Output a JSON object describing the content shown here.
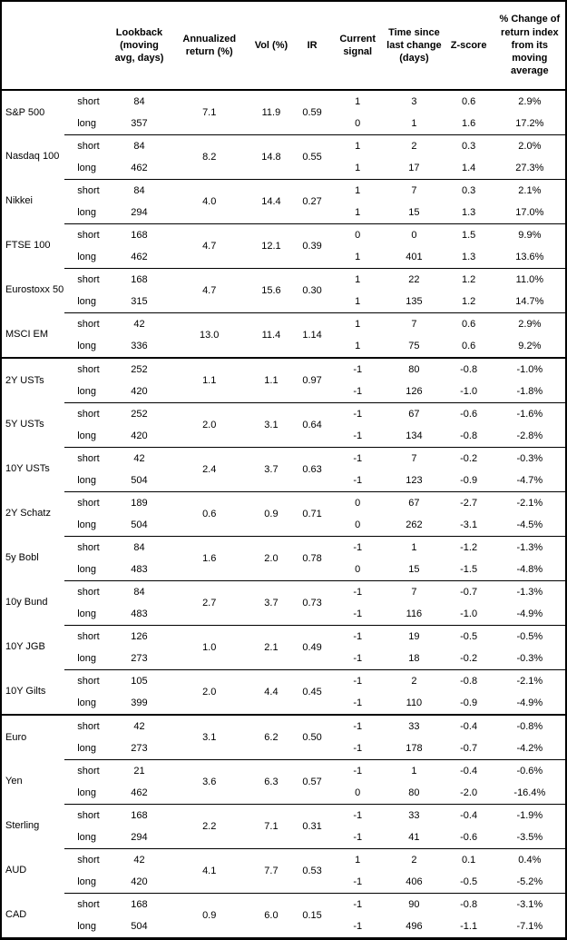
{
  "table": {
    "headers": [
      "",
      "",
      "Lookback (moving avg, days)",
      "Annualized return (%)",
      "Vol (%)",
      "IR",
      "Current signal",
      "Time since last change (days)",
      "Z-score",
      "% Change of return index from its moving average"
    ],
    "groups": [
      {
        "name": "S&P 500",
        "annualized_return": "7.1",
        "vol": "11.9",
        "ir": "0.59",
        "section_start": false,
        "rows": [
          {
            "side": "short",
            "lookback": "84",
            "signal": "1",
            "time_since": "3",
            "z_score": "0.6",
            "pct_change": "2.9%"
          },
          {
            "side": "long",
            "lookback": "357",
            "signal": "0",
            "time_since": "1",
            "z_score": "1.6",
            "pct_change": "17.2%"
          }
        ]
      },
      {
        "name": "Nasdaq 100",
        "annualized_return": "8.2",
        "vol": "14.8",
        "ir": "0.55",
        "section_start": false,
        "rows": [
          {
            "side": "short",
            "lookback": "84",
            "signal": "1",
            "time_since": "2",
            "z_score": "0.3",
            "pct_change": "2.0%"
          },
          {
            "side": "long",
            "lookback": "462",
            "signal": "1",
            "time_since": "17",
            "z_score": "1.4",
            "pct_change": "27.3%"
          }
        ]
      },
      {
        "name": "Nikkei",
        "annualized_return": "4.0",
        "vol": "14.4",
        "ir": "0.27",
        "section_start": false,
        "rows": [
          {
            "side": "short",
            "lookback": "84",
            "signal": "1",
            "time_since": "7",
            "z_score": "0.3",
            "pct_change": "2.1%"
          },
          {
            "side": "long",
            "lookback": "294",
            "signal": "1",
            "time_since": "15",
            "z_score": "1.3",
            "pct_change": "17.0%"
          }
        ]
      },
      {
        "name": "FTSE 100",
        "annualized_return": "4.7",
        "vol": "12.1",
        "ir": "0.39",
        "section_start": false,
        "rows": [
          {
            "side": "short",
            "lookback": "168",
            "signal": "0",
            "time_since": "0",
            "z_score": "1.5",
            "pct_change": "9.9%"
          },
          {
            "side": "long",
            "lookback": "462",
            "signal": "1",
            "time_since": "401",
            "z_score": "1.3",
            "pct_change": "13.6%"
          }
        ]
      },
      {
        "name": "Eurostoxx 50",
        "annualized_return": "4.7",
        "vol": "15.6",
        "ir": "0.30",
        "section_start": false,
        "rows": [
          {
            "side": "short",
            "lookback": "168",
            "signal": "1",
            "time_since": "22",
            "z_score": "1.2",
            "pct_change": "11.0%"
          },
          {
            "side": "long",
            "lookback": "315",
            "signal": "1",
            "time_since": "135",
            "z_score": "1.2",
            "pct_change": "14.7%"
          }
        ]
      },
      {
        "name": "MSCI EM",
        "annualized_return": "13.0",
        "vol": "11.4",
        "ir": "1.14",
        "section_start": false,
        "rows": [
          {
            "side": "short",
            "lookback": "42",
            "signal": "1",
            "time_since": "7",
            "z_score": "0.6",
            "pct_change": "2.9%"
          },
          {
            "side": "long",
            "lookback": "336",
            "signal": "1",
            "time_since": "75",
            "z_score": "0.6",
            "pct_change": "9.2%"
          }
        ]
      },
      {
        "name": "2Y USTs",
        "annualized_return": "1.1",
        "vol": "1.1",
        "ir": "0.97",
        "section_start": true,
        "rows": [
          {
            "side": "short",
            "lookback": "252",
            "signal": "-1",
            "time_since": "80",
            "z_score": "-0.8",
            "pct_change": "-1.0%"
          },
          {
            "side": "long",
            "lookback": "420",
            "signal": "-1",
            "time_since": "126",
            "z_score": "-1.0",
            "pct_change": "-1.8%"
          }
        ]
      },
      {
        "name": "5Y USTs",
        "annualized_return": "2.0",
        "vol": "3.1",
        "ir": "0.64",
        "section_start": false,
        "rows": [
          {
            "side": "short",
            "lookback": "252",
            "signal": "-1",
            "time_since": "67",
            "z_score": "-0.6",
            "pct_change": "-1.6%"
          },
          {
            "side": "long",
            "lookback": "420",
            "signal": "-1",
            "time_since": "134",
            "z_score": "-0.8",
            "pct_change": "-2.8%"
          }
        ]
      },
      {
        "name": "10Y USTs",
        "annualized_return": "2.4",
        "vol": "3.7",
        "ir": "0.63",
        "section_start": false,
        "rows": [
          {
            "side": "short",
            "lookback": "42",
            "signal": "-1",
            "time_since": "7",
            "z_score": "-0.2",
            "pct_change": "-0.3%"
          },
          {
            "side": "long",
            "lookback": "504",
            "signal": "-1",
            "time_since": "123",
            "z_score": "-0.9",
            "pct_change": "-4.7%"
          }
        ]
      },
      {
        "name": "2Y Schatz",
        "annualized_return": "0.6",
        "vol": "0.9",
        "ir": "0.71",
        "section_start": false,
        "rows": [
          {
            "side": "short",
            "lookback": "189",
            "signal": "0",
            "time_since": "67",
            "z_score": "-2.7",
            "pct_change": "-2.1%"
          },
          {
            "side": "long",
            "lookback": "504",
            "signal": "0",
            "time_since": "262",
            "z_score": "-3.1",
            "pct_change": "-4.5%"
          }
        ]
      },
      {
        "name": "5y Bobl",
        "annualized_return": "1.6",
        "vol": "2.0",
        "ir": "0.78",
        "section_start": false,
        "rows": [
          {
            "side": "short",
            "lookback": "84",
            "signal": "-1",
            "time_since": "1",
            "z_score": "-1.2",
            "pct_change": "-1.3%"
          },
          {
            "side": "long",
            "lookback": "483",
            "signal": "0",
            "time_since": "15",
            "z_score": "-1.5",
            "pct_change": "-4.8%"
          }
        ]
      },
      {
        "name": "10y Bund",
        "annualized_return": "2.7",
        "vol": "3.7",
        "ir": "0.73",
        "section_start": false,
        "rows": [
          {
            "side": "short",
            "lookback": "84",
            "signal": "-1",
            "time_since": "7",
            "z_score": "-0.7",
            "pct_change": "-1.3%"
          },
          {
            "side": "long",
            "lookback": "483",
            "signal": "-1",
            "time_since": "116",
            "z_score": "-1.0",
            "pct_change": "-4.9%"
          }
        ]
      },
      {
        "name": "10Y JGB",
        "annualized_return": "1.0",
        "vol": "2.1",
        "ir": "0.49",
        "section_start": false,
        "rows": [
          {
            "side": "short",
            "lookback": "126",
            "signal": "-1",
            "time_since": "19",
            "z_score": "-0.5",
            "pct_change": "-0.5%"
          },
          {
            "side": "long",
            "lookback": "273",
            "signal": "-1",
            "time_since": "18",
            "z_score": "-0.2",
            "pct_change": "-0.3%"
          }
        ]
      },
      {
        "name": "10Y Gilts",
        "annualized_return": "2.0",
        "vol": "4.4",
        "ir": "0.45",
        "section_start": false,
        "rows": [
          {
            "side": "short",
            "lookback": "105",
            "signal": "-1",
            "time_since": "2",
            "z_score": "-0.8",
            "pct_change": "-2.1%"
          },
          {
            "side": "long",
            "lookback": "399",
            "signal": "-1",
            "time_since": "110",
            "z_score": "-0.9",
            "pct_change": "-4.9%"
          }
        ]
      },
      {
        "name": "Euro",
        "annualized_return": "3.1",
        "vol": "6.2",
        "ir": "0.50",
        "section_start": true,
        "rows": [
          {
            "side": "short",
            "lookback": "42",
            "signal": "-1",
            "time_since": "33",
            "z_score": "-0.4",
            "pct_change": "-0.8%"
          },
          {
            "side": "long",
            "lookback": "273",
            "signal": "-1",
            "time_since": "178",
            "z_score": "-0.7",
            "pct_change": "-4.2%"
          }
        ]
      },
      {
        "name": "Yen",
        "annualized_return": "3.6",
        "vol": "6.3",
        "ir": "0.57",
        "section_start": false,
        "rows": [
          {
            "side": "short",
            "lookback": "21",
            "signal": "-1",
            "time_since": "1",
            "z_score": "-0.4",
            "pct_change": "-0.6%"
          },
          {
            "side": "long",
            "lookback": "462",
            "signal": "0",
            "time_since": "80",
            "z_score": "-2.0",
            "pct_change": "-16.4%"
          }
        ]
      },
      {
        "name": "Sterling",
        "annualized_return": "2.2",
        "vol": "7.1",
        "ir": "0.31",
        "section_start": false,
        "rows": [
          {
            "side": "short",
            "lookback": "168",
            "signal": "-1",
            "time_since": "33",
            "z_score": "-0.4",
            "pct_change": "-1.9%"
          },
          {
            "side": "long",
            "lookback": "294",
            "signal": "-1",
            "time_since": "41",
            "z_score": "-0.6",
            "pct_change": "-3.5%"
          }
        ]
      },
      {
        "name": "AUD",
        "annualized_return": "4.1",
        "vol": "7.7",
        "ir": "0.53",
        "section_start": false,
        "rows": [
          {
            "side": "short",
            "lookback": "42",
            "signal": "1",
            "time_since": "2",
            "z_score": "0.1",
            "pct_change": "0.4%"
          },
          {
            "side": "long",
            "lookback": "420",
            "signal": "-1",
            "time_since": "406",
            "z_score": "-0.5",
            "pct_change": "-5.2%"
          }
        ]
      },
      {
        "name": "CAD",
        "annualized_return": "0.9",
        "vol": "6.0",
        "ir": "0.15",
        "section_start": false,
        "rows": [
          {
            "side": "short",
            "lookback": "168",
            "signal": "-1",
            "time_since": "90",
            "z_score": "-0.8",
            "pct_change": "-3.1%"
          },
          {
            "side": "long",
            "lookback": "504",
            "signal": "-1",
            "time_since": "496",
            "z_score": "-1.1",
            "pct_change": "-7.1%"
          }
        ]
      }
    ]
  },
  "colors": {
    "text": "#000000",
    "border": "#000000",
    "background": "#ffffff"
  }
}
